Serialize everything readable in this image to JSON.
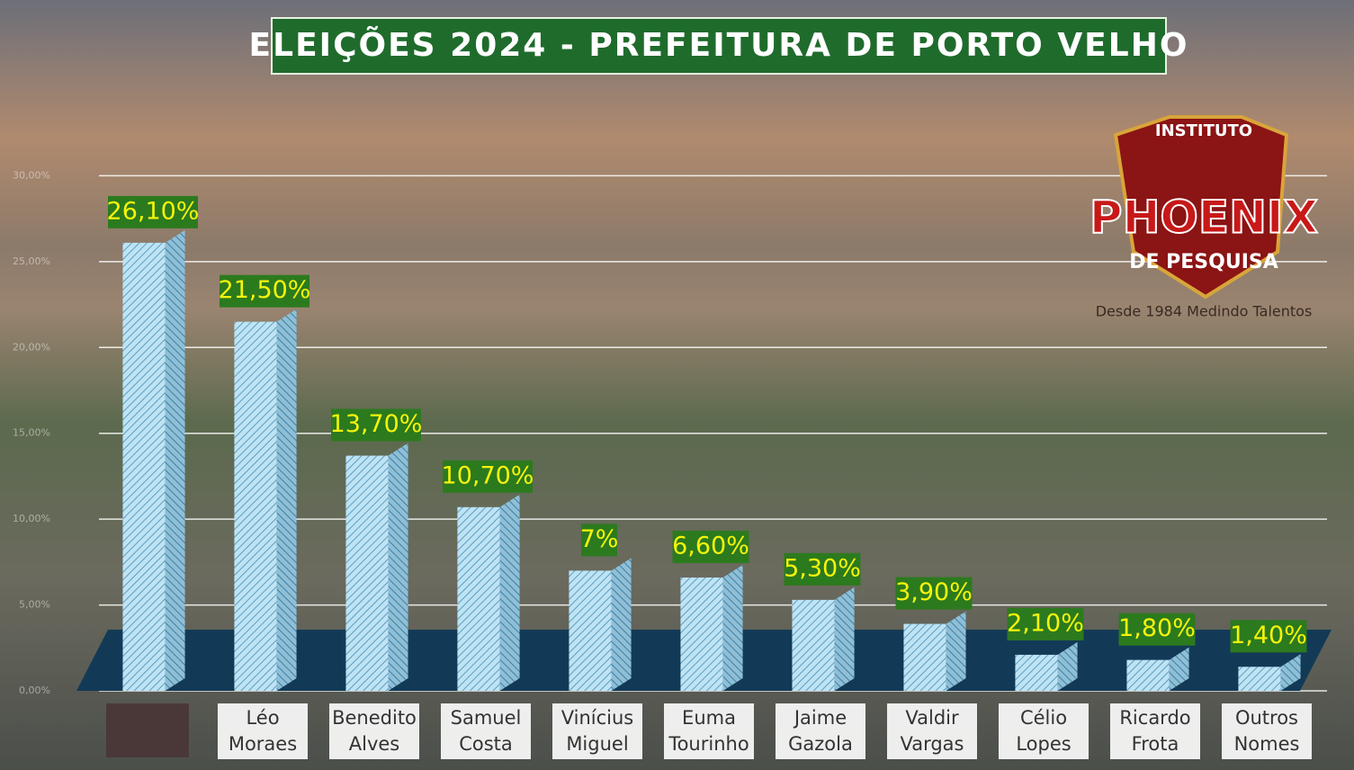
{
  "chart_data": {
    "type": "bar",
    "title": "ELEIÇÕES 2024 - PREFEITURA DE PORTO VELHO",
    "categories": [
      null,
      "Léo Moraes",
      "Benedito Alves",
      "Samuel Costa",
      "Vinícius Miguel",
      "Euma Tourinho",
      "Jaime Gazola",
      "Valdir Vargas",
      "Célio Lopes",
      "Ricardo Frota",
      "Outros Nomes"
    ],
    "values": [
      26.1,
      21.5,
      13.7,
      10.7,
      7,
      6.6,
      5.3,
      3.9,
      2.1,
      1.8,
      1.4
    ],
    "value_labels": [
      "26,10%",
      "21,50%",
      "13,70%",
      "10,70%",
      "7%",
      "6,60%",
      "5,30%",
      "3,90%",
      "2,10%",
      "1,80%",
      "1,40%"
    ],
    "color": "#9fd3ea",
    "ylim": [
      0,
      35
    ],
    "yticks": [
      {
        "value": 0,
        "label": "0,00%"
      },
      {
        "value": 5,
        "label": "5,00%"
      },
      {
        "value": 10,
        "label": "10,00%"
      },
      {
        "value": 15,
        "label": "15,00%"
      },
      {
        "value": 20,
        "label": "20,00%"
      },
      {
        "value": 25,
        "label": "25,00%"
      },
      {
        "value": 30,
        "label": "30,00%"
      }
    ],
    "grid": true
  },
  "logo": {
    "top": "INSTITUTO",
    "name": "PHOENIX",
    "sub": "DE PESQUISA",
    "tagline": "Desde 1984 Medindo Talentos"
  }
}
